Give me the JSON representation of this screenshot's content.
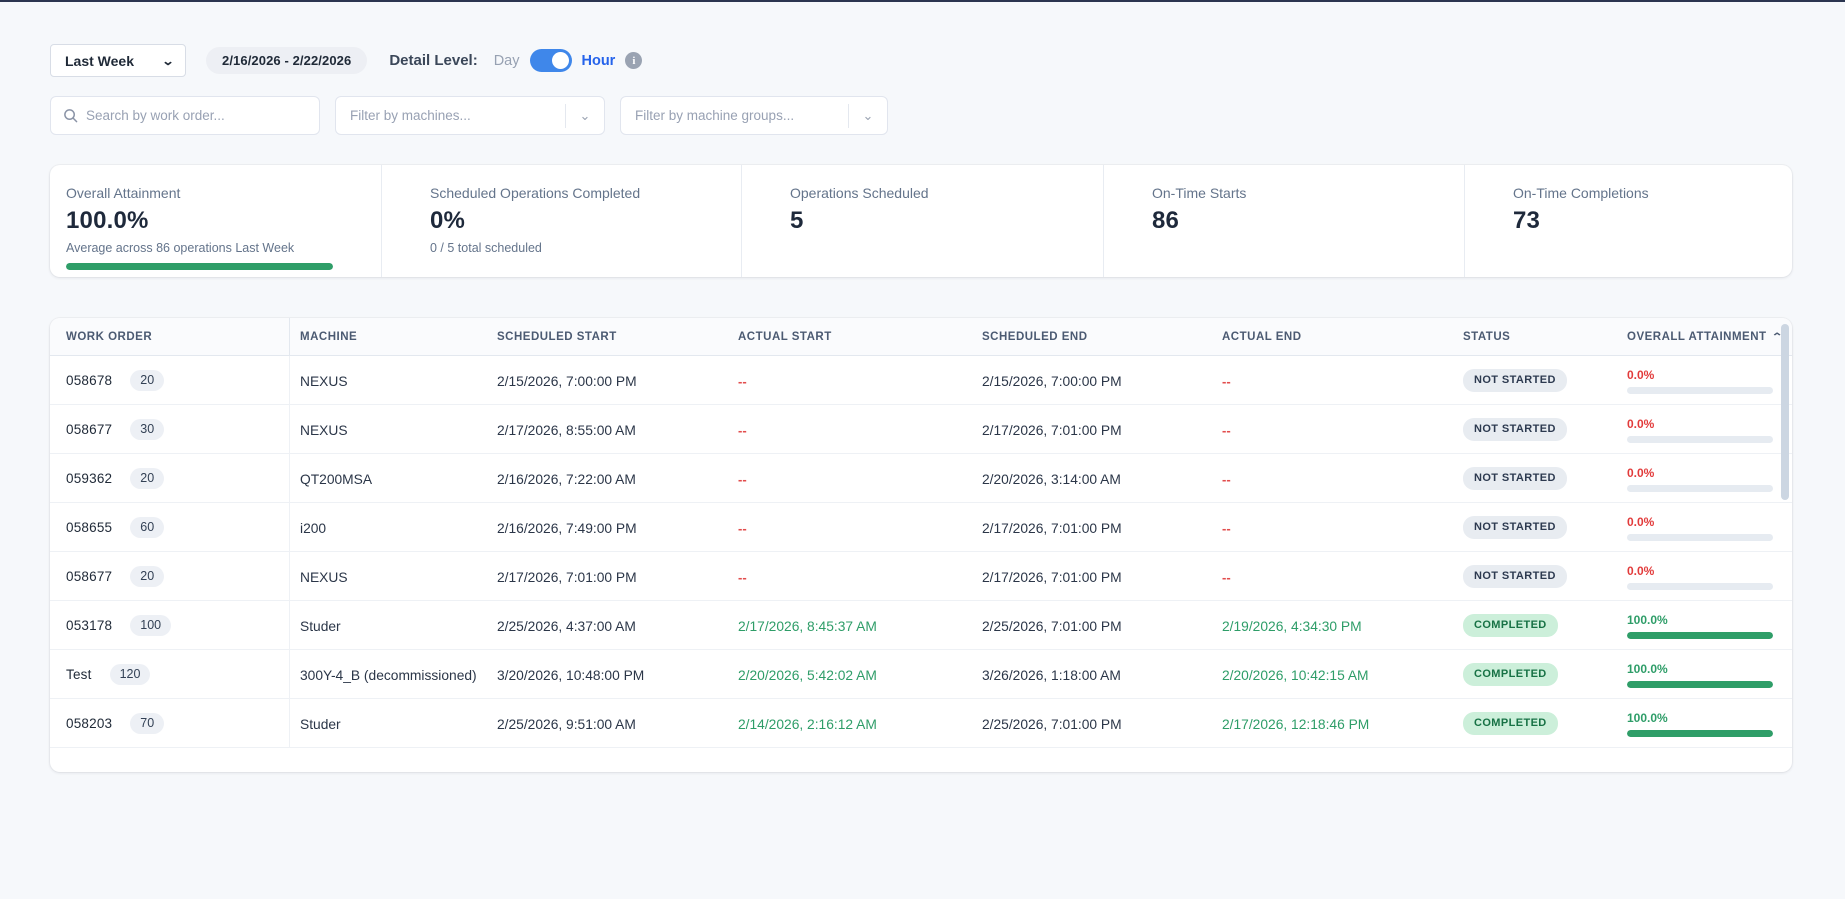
{
  "colors": {
    "accent_blue": "#3f87ea",
    "link_blue": "#2563eb",
    "green": "#2f9e68",
    "green_badge_bg": "#ccefda",
    "green_badge_text": "#177245",
    "red": "#e23b3b",
    "neutral_badge_bg": "#e8ecf1"
  },
  "toolbar": {
    "range_select_value": "Last Week",
    "date_range": "2/16/2026 - 2/22/2026",
    "detail_level_label": "Detail Level:",
    "day_label": "Day",
    "hour_label": "Hour",
    "detail_toggle_state": "Hour"
  },
  "filters": {
    "search_placeholder": "Search by work order...",
    "machines_placeholder": "Filter by machines...",
    "machine_groups_placeholder": "Filter by machine groups..."
  },
  "kpis": [
    {
      "label": "Overall Attainment",
      "value": "100.0%",
      "subtext": "Average across 86 operations Last Week",
      "progress_pct": 100
    },
    {
      "label": "Scheduled Operations Completed",
      "value": "0%",
      "subtext": "0 / 5 total scheduled"
    },
    {
      "label": "Operations Scheduled",
      "value": "5"
    },
    {
      "label": "On-Time Starts",
      "value": "86"
    },
    {
      "label": "On-Time Completions",
      "value": "73"
    }
  ],
  "table": {
    "columns": {
      "work_order": "WORK ORDER",
      "machine": "MACHINE",
      "scheduled_start": "SCHEDULED START",
      "actual_start": "ACTUAL START",
      "scheduled_end": "SCHEDULED END",
      "actual_end": "ACTUAL END",
      "status": "STATUS",
      "attainment": "OVERALL ATTAINMENT"
    },
    "sort": {
      "column": "OVERALL ATTAINMENT",
      "direction": "ascending"
    },
    "rows": [
      {
        "work_order": "058678",
        "operation": "20",
        "machine": "NEXUS",
        "scheduled_start": "2/15/2026, 7:00:00 PM",
        "actual_start": "--",
        "scheduled_end": "2/15/2026, 7:00:00 PM",
        "actual_end": "--",
        "status": "NOT STARTED",
        "status_type": "not-started",
        "attainment": "0.0%",
        "attainment_pct": 0
      },
      {
        "work_order": "058677",
        "operation": "30",
        "machine": "NEXUS",
        "scheduled_start": "2/17/2026, 8:55:00 AM",
        "actual_start": "--",
        "scheduled_end": "2/17/2026, 7:01:00 PM",
        "actual_end": "--",
        "status": "NOT STARTED",
        "status_type": "not-started",
        "attainment": "0.0%",
        "attainment_pct": 0
      },
      {
        "work_order": "059362",
        "operation": "20",
        "machine": "QT200MSA",
        "scheduled_start": "2/16/2026, 7:22:00 AM",
        "actual_start": "--",
        "scheduled_end": "2/20/2026, 3:14:00 AM",
        "actual_end": "--",
        "status": "NOT STARTED",
        "status_type": "not-started",
        "attainment": "0.0%",
        "attainment_pct": 0
      },
      {
        "work_order": "058655",
        "operation": "60",
        "machine": "i200",
        "scheduled_start": "2/16/2026, 7:49:00 PM",
        "actual_start": "--",
        "scheduled_end": "2/17/2026, 7:01:00 PM",
        "actual_end": "--",
        "status": "NOT STARTED",
        "status_type": "not-started",
        "attainment": "0.0%",
        "attainment_pct": 0
      },
      {
        "work_order": "058677",
        "operation": "20",
        "machine": "NEXUS",
        "scheduled_start": "2/17/2026, 7:01:00 PM",
        "actual_start": "--",
        "scheduled_end": "2/17/2026, 7:01:00 PM",
        "actual_end": "--",
        "status": "NOT STARTED",
        "status_type": "not-started",
        "attainment": "0.0%",
        "attainment_pct": 0
      },
      {
        "work_order": "053178",
        "operation": "100",
        "machine": "Studer",
        "scheduled_start": "2/25/2026, 4:37:00 AM",
        "actual_start": "2/17/2026, 8:45:37 AM",
        "scheduled_end": "2/25/2026, 7:01:00 PM",
        "actual_end": "2/19/2026, 4:34:30 PM",
        "status": "COMPLETED",
        "status_type": "completed",
        "attainment": "100.0%",
        "attainment_pct": 100
      },
      {
        "work_order": "Test",
        "operation": "120",
        "machine": "300Y-4_B (decommissioned)",
        "scheduled_start": "3/20/2026, 10:48:00 PM",
        "actual_start": "2/20/2026, 5:42:02 AM",
        "scheduled_end": "3/26/2026, 1:18:00 AM",
        "actual_end": "2/20/2026, 10:42:15 AM",
        "status": "COMPLETED",
        "status_type": "completed",
        "attainment": "100.0%",
        "attainment_pct": 100
      },
      {
        "work_order": "058203",
        "operation": "70",
        "machine": "Studer",
        "scheduled_start": "2/25/2026, 9:51:00 AM",
        "actual_start": "2/14/2026, 2:16:12 AM",
        "scheduled_end": "2/25/2026, 7:01:00 PM",
        "actual_end": "2/17/2026, 12:18:46 PM",
        "status": "COMPLETED",
        "status_type": "completed",
        "attainment": "100.0%",
        "attainment_pct": 100
      }
    ]
  }
}
